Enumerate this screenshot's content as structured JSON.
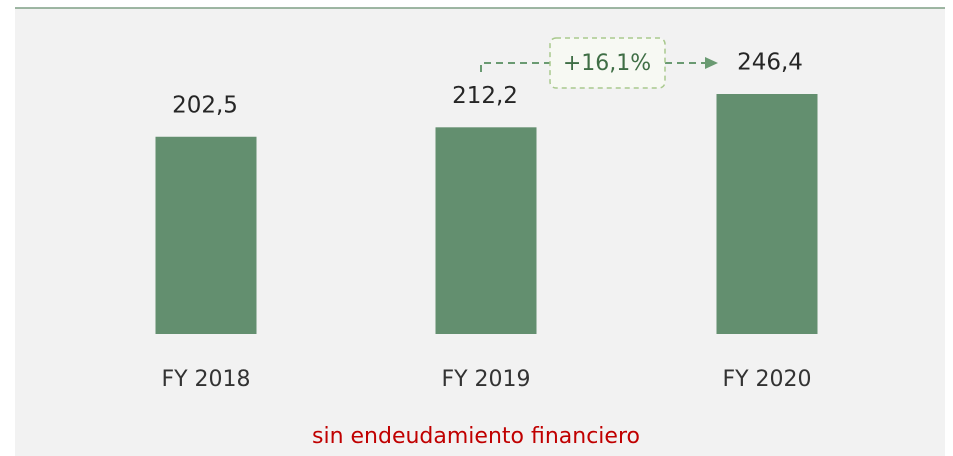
{
  "chart_data": {
    "type": "bar",
    "categories": [
      "FY 2018",
      "FY 2019",
      "FY 2020"
    ],
    "values": [
      202.5,
      212.2,
      246.4
    ],
    "value_labels": [
      "202,5",
      "212,2",
      "246,4"
    ],
    "color": "#638f6f",
    "annotation": "+16,1%",
    "footnote": "sin endeudamiento financiero"
  }
}
